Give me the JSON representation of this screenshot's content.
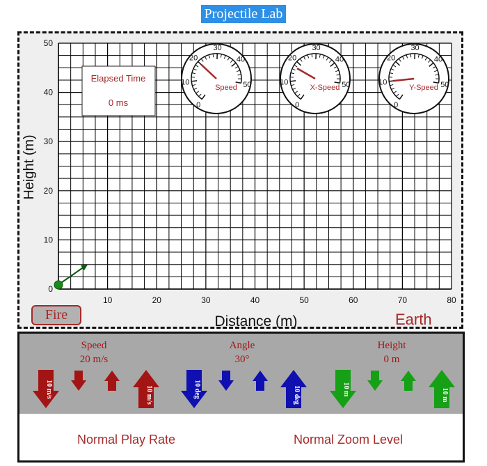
{
  "title": "Projectile Lab",
  "chart_data": {
    "type": "scatter",
    "xlabel": "Distance (m)",
    "ylabel": "Height (m)",
    "xlim": [
      0,
      80
    ],
    "ylim": [
      0,
      50
    ],
    "x_ticks": [
      "10",
      "20",
      "30",
      "40",
      "50",
      "60",
      "70",
      "80"
    ],
    "y_ticks": [
      "0",
      "10",
      "20",
      "30",
      "40",
      "50"
    ],
    "grid": true,
    "projectile": {
      "x": 0,
      "y": 1
    }
  },
  "elapsed": {
    "label": "Elapsed Time",
    "value": "0 ms"
  },
  "gauges": [
    {
      "label": "Speed",
      "value": 20,
      "color": "#a52a2a"
    },
    {
      "label": "X-Speed",
      "value": 17.3,
      "color": "#a52a2a"
    },
    {
      "label": "Y-Speed",
      "value": 10,
      "color": "#a52a2a"
    }
  ],
  "gauge_ticks": [
    "0",
    "10",
    "20",
    "30",
    "40",
    "50"
  ],
  "fire_label": "Fire",
  "planet": "Earth",
  "controls": {
    "speed": {
      "label": "Speed",
      "value": "20 m/s",
      "step_label": "10 m/s",
      "color": "#a31515"
    },
    "angle": {
      "label": "Angle",
      "value": "30°",
      "step_label": "10 deg",
      "color": "#1010b0"
    },
    "height": {
      "label": "Height",
      "value": "0 m",
      "step_label": "10 m",
      "color": "#16a016"
    }
  },
  "play_rate": "Normal Play Rate",
  "zoom_level": "Normal Zoom Level"
}
